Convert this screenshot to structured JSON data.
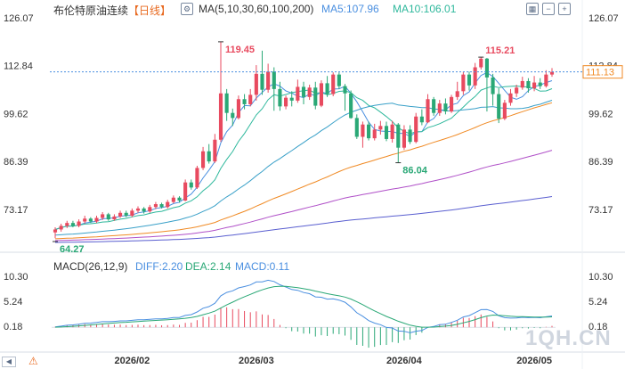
{
  "header": {
    "title": "布伦特原油连续",
    "period": "【日线】",
    "ma_label": "MA(5,10,30,60,100,200)",
    "ma5_label": "MA5:107.96",
    "ma10_label": "MA10:106.01"
  },
  "macd_header": {
    "label": "MACD(26,12,9)",
    "diff_label": "DIFF:2.20",
    "dea_label": "DEA:2.14",
    "macd_label": "MACD:0.11"
  },
  "price_axis": {
    "ticks": [
      "126.07",
      "112.84",
      "99.62",
      "86.39",
      "73.17"
    ]
  },
  "macd_axis": {
    "ticks": [
      "10.30",
      "5.24",
      "0.18"
    ]
  },
  "time_axis": {
    "ticks": [
      "2026/02",
      "2026/03",
      "2026/04",
      "2026/05"
    ]
  },
  "current_price": "111.13",
  "annotations": {
    "high1": "119.45",
    "high2": "115.21",
    "low1": "86.04",
    "low0": "64.27"
  },
  "watermark": "1QH.CN",
  "colors": {
    "up": "#e84a5f",
    "down": "#2aa876",
    "ma5": "#4a8fe0",
    "ma10": "#2eb89c",
    "ma30": "#39a0c8",
    "ma60": "#f08a24",
    "ma100": "#b050c8",
    "ma200": "#5a5fd0",
    "diff": "#4a8fe0",
    "dea": "#2aa876"
  },
  "chart_data": [
    {
      "type": "candlestick",
      "title": "布伦特原油连续",
      "period": "日线",
      "ylim": [
        64.27,
        126.07
      ],
      "last_price": 111.13,
      "ma_periods": [
        5,
        10,
        30,
        60,
        100,
        200
      ],
      "ma_values": {
        "MA5": 107.96,
        "MA10": 106.01
      },
      "highlights": {
        "max_high": 119.45,
        "recent_high": 115.21,
        "recent_low": 86.04,
        "min_low": 64.27
      },
      "candles": [
        [
          66.8,
          67.6,
          65.2,
          68.2
        ],
        [
          67.6,
          68.6,
          67.0,
          69.2
        ],
        [
          68.6,
          69.4,
          68.0,
          70.0
        ],
        [
          69.4,
          68.6,
          68.2,
          70.0
        ],
        [
          68.6,
          69.8,
          68.2,
          70.4
        ],
        [
          69.8,
          70.6,
          69.2,
          71.4
        ],
        [
          70.6,
          69.8,
          69.4,
          71.0
        ],
        [
          69.8,
          70.8,
          69.4,
          71.4
        ],
        [
          70.8,
          71.8,
          70.2,
          72.4
        ],
        [
          71.8,
          70.4,
          70.0,
          72.2
        ],
        [
          70.4,
          71.2,
          70.0,
          71.8
        ],
        [
          71.2,
          72.2,
          70.8,
          72.8
        ],
        [
          72.2,
          71.4,
          71.0,
          72.8
        ],
        [
          71.4,
          72.8,
          71.0,
          73.4
        ],
        [
          72.8,
          73.4,
          72.2,
          74.0
        ],
        [
          73.4,
          72.6,
          72.0,
          73.8
        ],
        [
          72.6,
          73.8,
          72.2,
          74.4
        ],
        [
          73.8,
          74.6,
          73.2,
          75.2
        ],
        [
          74.6,
          73.8,
          73.4,
          75.0
        ],
        [
          73.8,
          75.2,
          73.4,
          75.8
        ],
        [
          75.2,
          76.4,
          74.8,
          77.0
        ],
        [
          76.4,
          75.6,
          75.0,
          76.8
        ],
        [
          75.6,
          80.6,
          75.4,
          81.4
        ],
        [
          80.6,
          79.2,
          78.6,
          81.4
        ],
        [
          79.2,
          84.6,
          78.8,
          85.2
        ],
        [
          84.6,
          89.2,
          84.0,
          90.4
        ],
        [
          89.2,
          86.4,
          85.8,
          91.2
        ],
        [
          86.4,
          92.4,
          86.0,
          94.0
        ],
        [
          92.4,
          105.2,
          91.8,
          119.45
        ],
        [
          105.2,
          99.8,
          97.6,
          106.4
        ],
        [
          99.8,
          98.4,
          96.2,
          101.0
        ],
        [
          98.4,
          103.6,
          98.0,
          104.6
        ],
        [
          103.6,
          102.2,
          100.8,
          105.0
        ],
        [
          102.2,
          104.8,
          101.6,
          106.4
        ],
        [
          104.8,
          110.6,
          103.2,
          113.0
        ],
        [
          110.6,
          106.2,
          104.8,
          117.0
        ],
        [
          106.2,
          111.2,
          105.4,
          113.4
        ],
        [
          111.2,
          106.4,
          100.4,
          112.4
        ],
        [
          106.4,
          101.6,
          100.4,
          108.4
        ],
        [
          101.6,
          104.0,
          100.8,
          104.6
        ],
        [
          104.0,
          103.2,
          101.6,
          105.8
        ],
        [
          103.2,
          107.0,
          102.6,
          109.0
        ],
        [
          107.0,
          104.2,
          102.2,
          108.4
        ],
        [
          104.2,
          106.8,
          103.4,
          107.6
        ],
        [
          106.8,
          101.8,
          100.8,
          108.4
        ],
        [
          101.8,
          108.0,
          101.4,
          108.8
        ],
        [
          108.0,
          105.0,
          104.2,
          110.0
        ],
        [
          105.0,
          110.4,
          104.4,
          111.0
        ],
        [
          110.4,
          107.2,
          106.4,
          111.0
        ],
        [
          107.2,
          105.2,
          100.4,
          107.8
        ],
        [
          105.2,
          98.4,
          98.2,
          106.0
        ],
        [
          98.4,
          93.2,
          92.6,
          99.4
        ],
        [
          93.2,
          96.6,
          90.2,
          97.4
        ],
        [
          96.6,
          92.8,
          92.2,
          97.4
        ],
        [
          92.8,
          95.2,
          92.2,
          96.8
        ],
        [
          95.2,
          96.2,
          93.8,
          97.6
        ],
        [
          96.2,
          92.6,
          92.0,
          97.4
        ],
        [
          92.6,
          96.6,
          91.6,
          97.6
        ],
        [
          96.6,
          90.2,
          86.04,
          97.0
        ],
        [
          90.2,
          95.2,
          89.6,
          96.4
        ],
        [
          95.2,
          91.8,
          91.2,
          96.4
        ],
        [
          91.8,
          98.8,
          91.4,
          99.8
        ],
        [
          98.8,
          97.2,
          96.4,
          100.8
        ],
        [
          97.2,
          103.6,
          97.0,
          105.0
        ],
        [
          103.6,
          99.8,
          99.0,
          104.2
        ],
        [
          99.8,
          102.4,
          99.0,
          103.4
        ],
        [
          102.4,
          100.2,
          99.4,
          103.8
        ],
        [
          100.2,
          104.2,
          99.8,
          104.8
        ],
        [
          104.2,
          105.8,
          103.4,
          108.4
        ],
        [
          105.8,
          110.4,
          104.8,
          111.2
        ],
        [
          110.4,
          107.4,
          106.0,
          111.2
        ],
        [
          107.4,
          112.4,
          106.4,
          113.6
        ],
        [
          112.4,
          114.8,
          111.8,
          115.21
        ],
        [
          114.8,
          109.6,
          100.2,
          115.0
        ],
        [
          109.6,
          105.0,
          101.8,
          110.6
        ],
        [
          105.0,
          98.2,
          97.0,
          106.6
        ],
        [
          98.2,
          102.6,
          97.8,
          103.4
        ],
        [
          102.6,
          105.2,
          101.8,
          106.4
        ],
        [
          105.2,
          106.8,
          104.2,
          107.6
        ],
        [
          106.8,
          108.6,
          106.2,
          109.8
        ],
        [
          108.6,
          106.6,
          105.4,
          109.4
        ],
        [
          106.6,
          108.2,
          105.8,
          110.0
        ],
        [
          108.2,
          107.2,
          106.4,
          109.4
        ],
        [
          107.2,
          110.4,
          106.8,
          111.6
        ],
        [
          110.4,
          111.13,
          109.8,
          112.2
        ]
      ]
    },
    {
      "type": "macd",
      "title": "MACD(26,12,9)",
      "params": [
        26,
        12,
        9
      ],
      "ylim": [
        -5.0,
        10.3
      ],
      "values": {
        "DIFF": 2.2,
        "DEA": 2.14,
        "MACD": 0.11
      }
    }
  ]
}
